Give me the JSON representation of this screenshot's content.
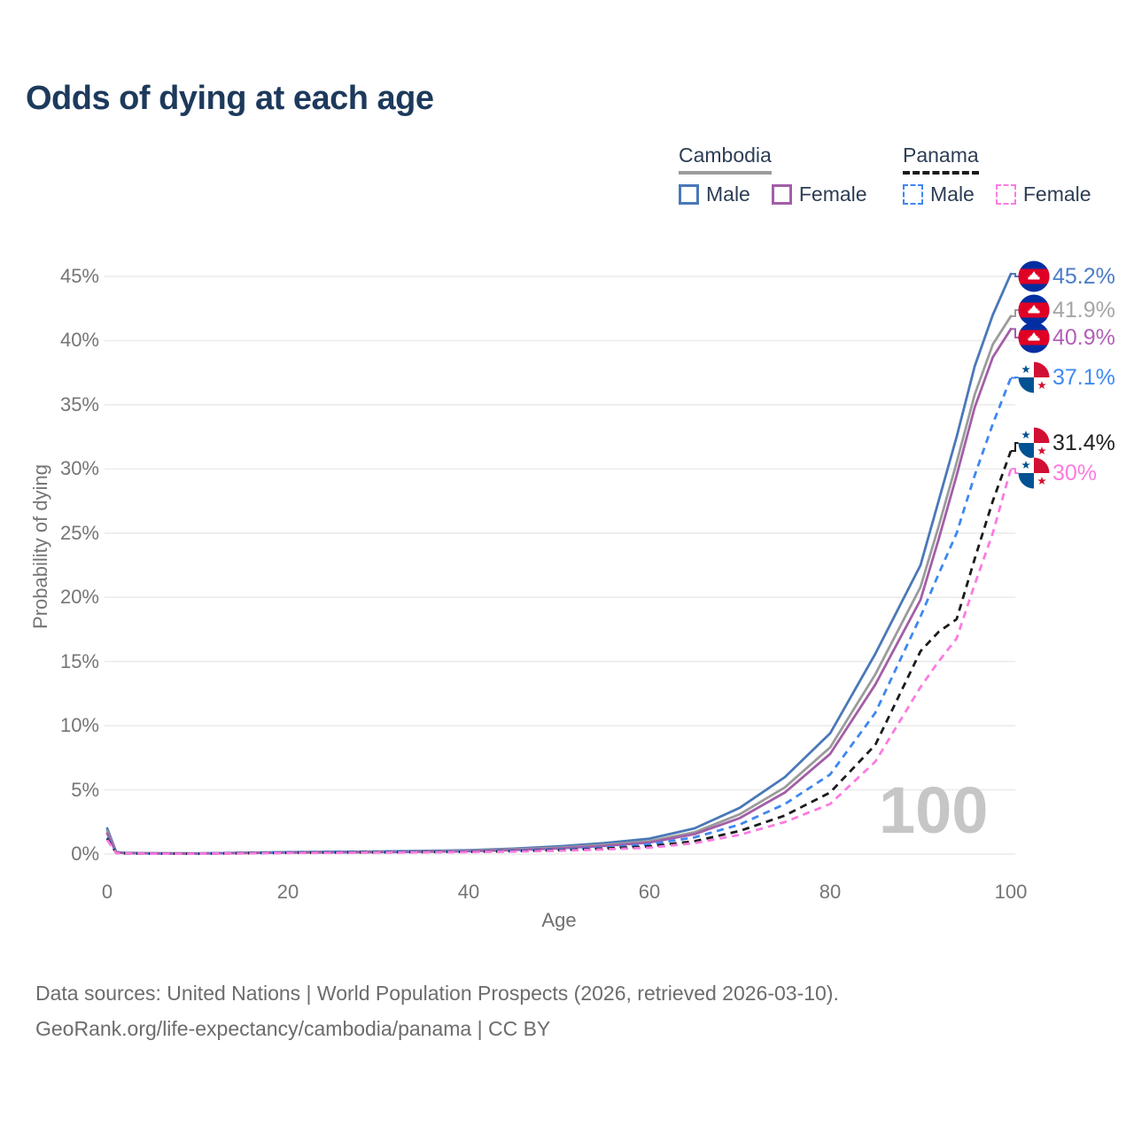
{
  "title": "Odds of dying at each age",
  "legend": {
    "groups": [
      {
        "label": "Cambodia",
        "underline_series": 1,
        "items": [
          {
            "label": "Male",
            "series": 0
          },
          {
            "label": "Female",
            "series": 2
          }
        ]
      },
      {
        "label": "Panama",
        "underline_series": 4,
        "items": [
          {
            "label": "Male",
            "series": 3
          },
          {
            "label": "Female",
            "series": 5
          }
        ]
      }
    ]
  },
  "watermark": "100",
  "footer": {
    "line1": "Data sources: United Nations | World Population Prospects (2026, retrieved 2026-03-10).",
    "line2": "GeoRank.org/life-expectancy/cambodia/panama | CC BY"
  },
  "chart_data": {
    "type": "line",
    "title": "Odds of dying at each age",
    "xlabel": "Age",
    "ylabel": "Probability of dying",
    "xlim": [
      0,
      100
    ],
    "ylim": [
      0,
      45
    ],
    "x_ticks": [
      0,
      20,
      40,
      60,
      80,
      100
    ],
    "y_ticks": [
      0,
      5,
      10,
      15,
      20,
      25,
      30,
      35,
      40,
      45
    ],
    "y_tick_suffix": "%",
    "grid": "horizontal",
    "legend_position": "top-right",
    "x": [
      0,
      1,
      2,
      5,
      10,
      15,
      20,
      25,
      30,
      35,
      40,
      45,
      50,
      55,
      60,
      65,
      70,
      75,
      80,
      85,
      90,
      92,
      94,
      96,
      98,
      100
    ],
    "series": [
      {
        "name": "Cambodia Male",
        "country": "Cambodia",
        "group": "Male",
        "color": "#4a78b8",
        "label_color": "#4a7cc8",
        "dash": false,
        "flag": "kh",
        "end_label": "45.2%",
        "end_value": 45.2,
        "values": [
          2.0,
          0.15,
          0.1,
          0.06,
          0.05,
          0.1,
          0.15,
          0.18,
          0.2,
          0.25,
          0.3,
          0.42,
          0.6,
          0.85,
          1.2,
          2.0,
          3.6,
          6.0,
          9.4,
          15.6,
          22.5,
          27.5,
          32.5,
          38.0,
          42.0,
          45.2
        ]
      },
      {
        "name": "Cambodia",
        "country": "Cambodia",
        "group": "Both",
        "color": "#9b9b9b",
        "label_color": "#a6a6a6",
        "dash": false,
        "flag": "kh",
        "end_label": "41.9%",
        "end_value": 41.9,
        "values": [
          1.8,
          0.13,
          0.09,
          0.055,
          0.045,
          0.09,
          0.13,
          0.15,
          0.17,
          0.21,
          0.26,
          0.36,
          0.5,
          0.72,
          1.0,
          1.7,
          3.1,
          5.2,
          8.3,
          14.0,
          20.8,
          25.5,
          30.5,
          35.8,
          39.7,
          41.9
        ]
      },
      {
        "name": "Cambodia Female",
        "country": "Cambodia",
        "group": "Female",
        "color": "#a35ea8",
        "label_color": "#b25fb8",
        "dash": false,
        "flag": "kh",
        "end_label": "40.9%",
        "end_value": 40.9,
        "values": [
          1.6,
          0.11,
          0.08,
          0.05,
          0.04,
          0.08,
          0.11,
          0.13,
          0.15,
          0.18,
          0.22,
          0.31,
          0.44,
          0.63,
          0.9,
          1.55,
          2.8,
          4.8,
          7.8,
          13.2,
          19.8,
          24.5,
          29.5,
          34.8,
          38.7,
          40.9
        ]
      },
      {
        "name": "Panama Male",
        "country": "Panama",
        "group": "Male",
        "color": "#3e87f0",
        "label_color": "#3e8af2",
        "dash": true,
        "flag": "pa",
        "end_label": "37.1%",
        "end_value": 37.1,
        "values": [
          1.3,
          0.09,
          0.06,
          0.04,
          0.035,
          0.08,
          0.13,
          0.15,
          0.16,
          0.18,
          0.2,
          0.27,
          0.36,
          0.5,
          0.75,
          1.3,
          2.3,
          3.9,
          6.2,
          11.0,
          18.5,
          21.8,
          25.0,
          29.5,
          33.5,
          37.1
        ]
      },
      {
        "name": "Panama",
        "country": "Panama",
        "group": "Both",
        "color": "#1b1b1b",
        "label_color": "#222222",
        "dash": true,
        "flag": "pa",
        "end_label": "31.4%",
        "end_value": 31.4,
        "values": [
          1.2,
          0.08,
          0.05,
          0.035,
          0.03,
          0.06,
          0.1,
          0.12,
          0.13,
          0.15,
          0.17,
          0.22,
          0.3,
          0.42,
          0.6,
          1.0,
          1.8,
          3.0,
          4.8,
          8.5,
          15.8,
          17.3,
          18.3,
          23.0,
          27.5,
          31.4
        ]
      },
      {
        "name": "Panama Female",
        "country": "Panama",
        "group": "Female",
        "color": "#fb7be0",
        "label_color": "#fb7be0",
        "dash": true,
        "flag": "pa",
        "end_label": "30%",
        "end_value": 30.0,
        "values": [
          1.1,
          0.07,
          0.045,
          0.03,
          0.025,
          0.05,
          0.08,
          0.1,
          0.11,
          0.13,
          0.15,
          0.19,
          0.26,
          0.36,
          0.5,
          0.85,
          1.5,
          2.5,
          3.9,
          7.2,
          13.0,
          15.0,
          16.8,
          21.0,
          25.0,
          30.0
        ]
      }
    ],
    "flag_colors": {
      "cambodia_blue": "#032ea1",
      "cambodia_red": "#e00025",
      "panama_blue": "#005293",
      "panama_red": "#d21034"
    }
  }
}
